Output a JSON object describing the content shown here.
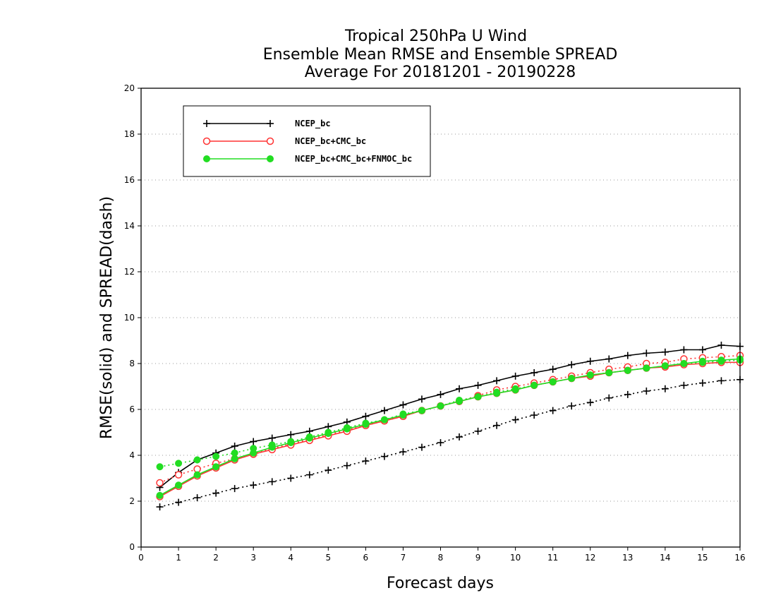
{
  "chart_data": {
    "type": "line",
    "title_lines": [
      "Tropical 250hPa U Wind",
      "Ensemble Mean RMSE and Ensemble SPREAD",
      "Average For 20181201 - 20190228"
    ],
    "xlabel": "Forecast days",
    "ylabel": "RMSE(solid) and SPREAD(dash)",
    "xlim": [
      0,
      16
    ],
    "ylim": [
      0,
      20
    ],
    "xticks": [
      0,
      1,
      2,
      3,
      4,
      5,
      6,
      7,
      8,
      9,
      10,
      11,
      12,
      13,
      14,
      15,
      16
    ],
    "yticks": [
      0,
      2,
      4,
      6,
      8,
      10,
      12,
      14,
      16,
      18,
      20
    ],
    "grid": "horizontal dotted",
    "legend_position": "top-left",
    "x": [
      0.5,
      1,
      1.5,
      2,
      2.5,
      3,
      3.5,
      4,
      4.5,
      5,
      5.5,
      6,
      6.5,
      7,
      7.5,
      8,
      8.5,
      9,
      9.5,
      10,
      10.5,
      11,
      11.5,
      12,
      12.5,
      13,
      13.5,
      14,
      14.5,
      15,
      15.5,
      16
    ],
    "series": [
      {
        "name": "NCEP_bc",
        "color": "#000000",
        "marker": "plus",
        "rmse": [
          2.6,
          3.25,
          3.8,
          4.1,
          4.4,
          4.6,
          4.75,
          4.9,
          5.05,
          5.25,
          5.45,
          5.7,
          5.95,
          6.2,
          6.45,
          6.65,
          6.9,
          7.05,
          7.25,
          7.45,
          7.6,
          7.75,
          7.95,
          8.1,
          8.2,
          8.35,
          8.45,
          8.5,
          8.6,
          8.6,
          8.8,
          8.75
        ],
        "spread": [
          1.75,
          1.95,
          2.15,
          2.35,
          2.55,
          2.7,
          2.85,
          3.0,
          3.15,
          3.35,
          3.55,
          3.75,
          3.95,
          4.15,
          4.35,
          4.55,
          4.8,
          5.05,
          5.3,
          5.55,
          5.75,
          5.95,
          6.15,
          6.3,
          6.5,
          6.65,
          6.8,
          6.9,
          7.05,
          7.15,
          7.25,
          7.3
        ]
      },
      {
        "name": "NCEP_bc+CMC_bc",
        "color": "#ff3333",
        "marker": "open-circle",
        "rmse": [
          2.2,
          2.65,
          3.1,
          3.45,
          3.8,
          4.05,
          4.25,
          4.45,
          4.65,
          4.85,
          5.05,
          5.3,
          5.5,
          5.7,
          5.95,
          6.15,
          6.35,
          6.55,
          6.7,
          6.85,
          7.05,
          7.2,
          7.35,
          7.45,
          7.6,
          7.7,
          7.8,
          7.85,
          7.95,
          8.0,
          8.05,
          8.05
        ],
        "spread": [
          2.8,
          3.15,
          3.4,
          3.65,
          3.85,
          4.05,
          4.3,
          4.5,
          4.7,
          4.9,
          5.1,
          5.3,
          5.5,
          5.7,
          5.95,
          6.15,
          6.35,
          6.6,
          6.85,
          7.0,
          7.15,
          7.3,
          7.45,
          7.6,
          7.75,
          7.85,
          8.0,
          8.05,
          8.2,
          8.25,
          8.3,
          8.35
        ]
      },
      {
        "name": "NCEP_bc+CMC_bc+FNMOC_bc",
        "color": "#22dd22",
        "marker": "filled-circle",
        "rmse": [
          2.25,
          2.7,
          3.15,
          3.5,
          3.85,
          4.1,
          4.35,
          4.55,
          4.75,
          4.95,
          5.15,
          5.35,
          5.55,
          5.75,
          5.95,
          6.15,
          6.35,
          6.55,
          6.7,
          6.85,
          7.05,
          7.2,
          7.35,
          7.5,
          7.6,
          7.7,
          7.8,
          7.9,
          8.0,
          8.1,
          8.15,
          8.2
        ],
        "spread": [
          3.5,
          3.65,
          3.8,
          3.95,
          4.1,
          4.3,
          4.45,
          4.6,
          4.8,
          5.0,
          5.2,
          5.4,
          5.55,
          5.8,
          5.95,
          6.15,
          6.4,
          6.55,
          6.75,
          6.9,
          7.05,
          7.2,
          7.35,
          7.5,
          7.6,
          7.7,
          7.8,
          7.9,
          8.0,
          8.05,
          8.1,
          8.15
        ]
      }
    ]
  }
}
